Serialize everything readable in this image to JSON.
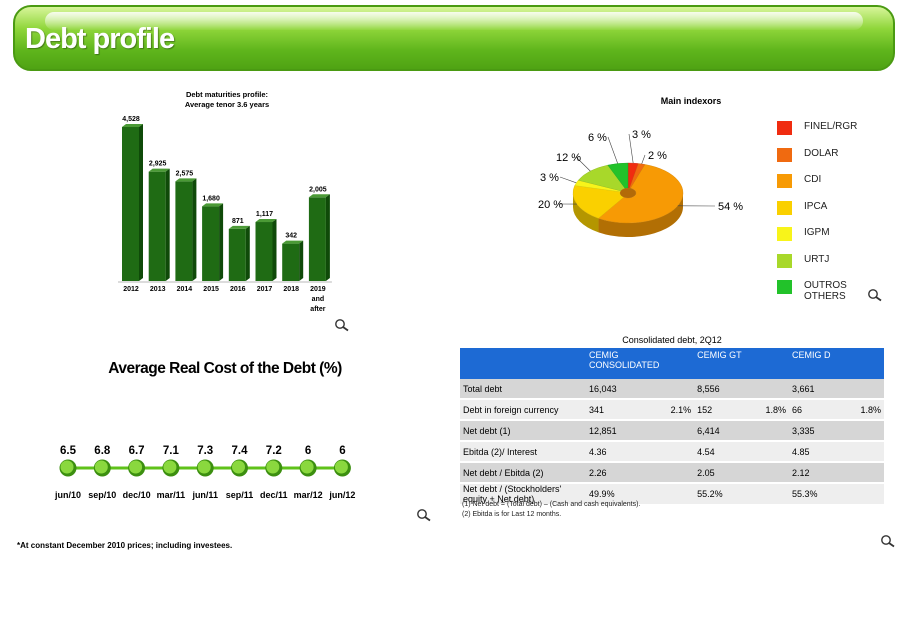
{
  "header": {
    "title": "Debt profile"
  },
  "chart_data": [
    {
      "type": "bar",
      "title": "Debt maturities profile:",
      "subtitle": "Average tenor 3.6 years",
      "categories": [
        "2012",
        "2013",
        "2014",
        "2015",
        "2016",
        "2017",
        "2018",
        "2019 and after"
      ],
      "category_lines": [
        [
          "2012"
        ],
        [
          "2013"
        ],
        [
          "2014"
        ],
        [
          "2015"
        ],
        [
          "2016"
        ],
        [
          "2017"
        ],
        [
          "2018"
        ],
        [
          "2019",
          "and",
          "after"
        ]
      ],
      "values": [
        4528,
        2925,
        2575,
        1680,
        871,
        1117,
        342,
        2005
      ],
      "value_labels": [
        "4,528",
        "2,925",
        "2,575",
        "1,680",
        "871",
        "1,117",
        "342",
        "2,005"
      ],
      "color": "#1f6b14",
      "ylim": [
        -1000,
        4600
      ]
    },
    {
      "type": "pie",
      "title": "Main indexors",
      "slices": [
        {
          "name": "FINEL/RGR",
          "value": 3,
          "label": "3 %",
          "color": "#f02c10"
        },
        {
          "name": "DOLAR",
          "value": 2,
          "label": "2 %",
          "color": "#f06a10"
        },
        {
          "name": "CDI",
          "value": 54,
          "label": "54 %",
          "color": "#f79a05"
        },
        {
          "name": "IPCA",
          "value": 20,
          "label": "20 %",
          "color": "#fad000"
        },
        {
          "name": "IGPM",
          "value": 3,
          "label": "3 %",
          "color": "#f8f41a"
        },
        {
          "name": "URTJ",
          "value": 12,
          "label": "12 %",
          "color": "#a8d82a"
        },
        {
          "name": "OUTROS OTHERS",
          "value": 6,
          "label": "6 %",
          "color": "#22c22a"
        }
      ],
      "legend": [
        {
          "lines": [
            "FINEL/RGR"
          ],
          "color": "#f02c10"
        },
        {
          "lines": [
            "DOLAR"
          ],
          "color": "#f06a10"
        },
        {
          "lines": [
            "CDI"
          ],
          "color": "#f79a05"
        },
        {
          "lines": [
            "IPCA"
          ],
          "color": "#fad000"
        },
        {
          "lines": [
            "IGPM"
          ],
          "color": "#f8f41a"
        },
        {
          "lines": [
            "URTJ"
          ],
          "color": "#a8d82a"
        },
        {
          "lines": [
            "OUTROS",
            "OTHERS"
          ],
          "color": "#22c22a"
        }
      ],
      "legend_position": "right"
    },
    {
      "type": "line",
      "title": "Average Real Cost of the Debt (%)",
      "categories": [
        "jun/10",
        "sep/10",
        "dec/10",
        "mar/11",
        "jun/11",
        "sep/11",
        "dec/11",
        "mar/12",
        "jun/12"
      ],
      "values": [
        6.5,
        6.8,
        6.7,
        7.1,
        7.3,
        7.4,
        7.2,
        6,
        6
      ],
      "value_labels": [
        "6.5",
        "6.8",
        "6.7",
        "7.1",
        "7.3",
        "7.4",
        "7.2",
        "6",
        "6"
      ],
      "color": "#5fc21a"
    },
    {
      "type": "table",
      "title": "Consolidated debt, 2Q12",
      "columns": [
        {
          "lines": [
            "CEMIG",
            "CONSOLIDATED"
          ]
        },
        {
          "lines": [
            "CEMIG GT"
          ]
        },
        {
          "lines": [
            "CEMIG D"
          ]
        }
      ],
      "rows": [
        {
          "label": "Total debt",
          "c1": "16,043",
          "p1": "",
          "c2": "8,556",
          "p2": "",
          "c3": "3,661",
          "p3": ""
        },
        {
          "label": "Debt in foreign currency",
          "c1": "341",
          "p1": "2.1%",
          "c2": "152",
          "p2": "1.8%",
          "c3": "66",
          "p3": "1.8%"
        },
        {
          "label": "Net debt (1)",
          "c1": "12,851",
          "p1": "",
          "c2": "6,414",
          "p2": "",
          "c3": "3,335",
          "p3": ""
        },
        {
          "label": "Ebitda (2)/ Interest",
          "c1": "4.36",
          "p1": "",
          "c2": "4.54",
          "p2": "",
          "c3": "4.85",
          "p3": ""
        },
        {
          "label": "Net debt / Ebitda (2)",
          "c1": "2.26",
          "p1": "",
          "c2": "2.05",
          "p2": "",
          "c3": "2.12",
          "p3": ""
        },
        {
          "label": "Net debt / (Stockholders' equity + Net debt)",
          "c1": "49.9%",
          "p1": "",
          "c2": "55.2%",
          "p2": "",
          "c3": "55.3%",
          "p3": ""
        }
      ],
      "notes": [
        "(1) Net debt = (Total debt) – (Cash and cash equivalents).",
        "(2) Ebitda is for Last 12 months."
      ],
      "header_color": "#1d6ad4"
    }
  ],
  "footnote": "*At constant December 2010 prices; including investees.",
  "icons": {
    "zoom": "magnifier-icon"
  }
}
